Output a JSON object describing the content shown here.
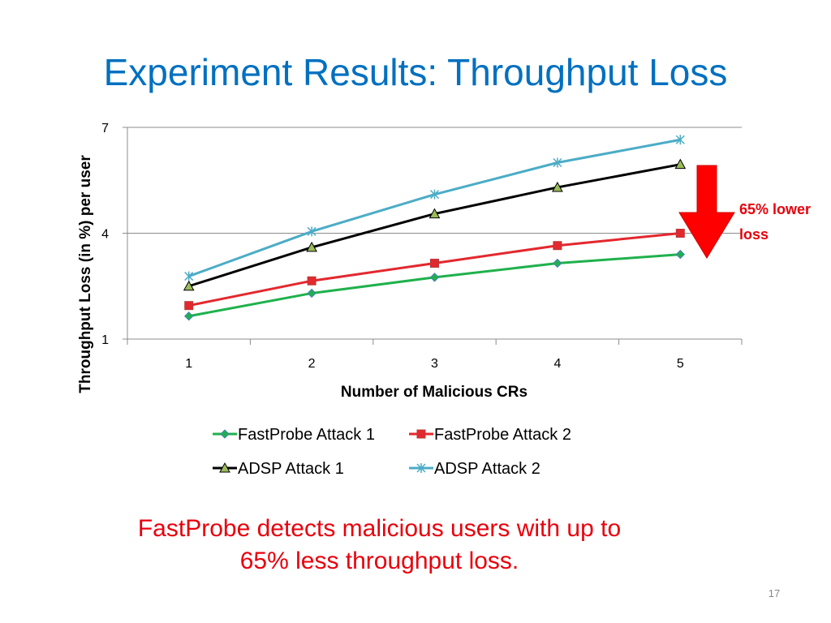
{
  "slide": {
    "title": "Experiment Results: Throughput Loss",
    "caption_line1": "FastProbe detects malicious users with up to",
    "caption_line2": "65%  less throughput loss.",
    "page_number": "17"
  },
  "colors": {
    "title": "#0070C0",
    "emphasis": "#E8000B",
    "fastprobe_attack_1": "#1FB14C",
    "fastprobe_attack_2": "#E3282E",
    "adsp_attack_1": "#000000",
    "adsp_attack_2": "#4BACC6"
  },
  "chart_data": {
    "type": "line",
    "title": "",
    "xlabel": "Number of Malicious CRs",
    "ylabel": "Throughput Loss (in %) per user",
    "x": [
      1,
      2,
      3,
      4,
      5
    ],
    "xlim": [
      0.5,
      5.5
    ],
    "ylim": [
      1,
      7
    ],
    "yticks": [
      1,
      4,
      7
    ],
    "grid": true,
    "legend_position": "bottom",
    "series": [
      {
        "name": "FastProbe Attack 1",
        "values": [
          1.65,
          2.3,
          2.75,
          3.15,
          3.4
        ],
        "color": "#1FB14C",
        "marker": "diamond"
      },
      {
        "name": "FastProbe Attack 2",
        "values": [
          1.95,
          2.65,
          3.15,
          3.65,
          4.0
        ],
        "color": "#E3282E",
        "marker": "square"
      },
      {
        "name": "ADSP Attack 1",
        "values": [
          2.5,
          3.6,
          4.55,
          5.3,
          5.95
        ],
        "color": "#000000",
        "marker": "triangle"
      },
      {
        "name": "ADSP Attack 2",
        "values": [
          2.78,
          4.05,
          5.1,
          6.0,
          6.65
        ],
        "color": "#4BACC6",
        "marker": "star"
      }
    ],
    "annotation": {
      "text_line1": "65% lower",
      "text_line2": "loss",
      "arrow": "down"
    }
  }
}
